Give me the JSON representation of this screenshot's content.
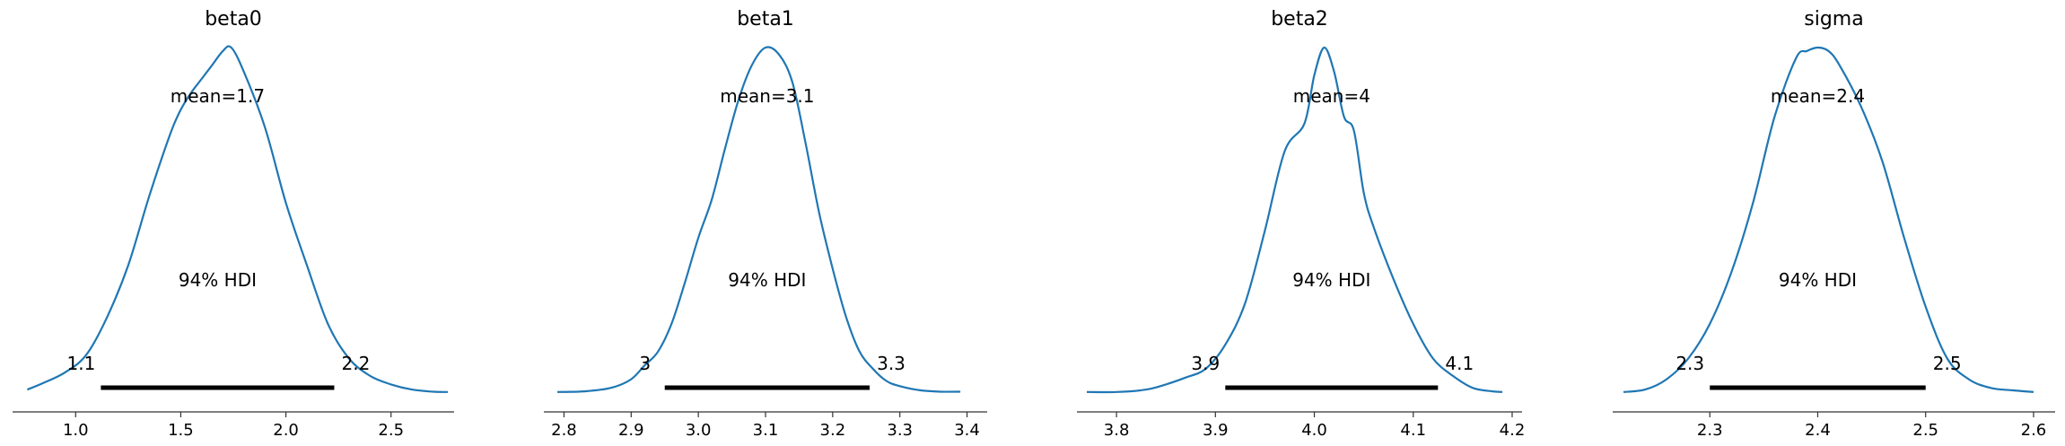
{
  "chart_data": [
    {
      "type": "line",
      "title": "beta0",
      "mean_label": "mean=1.7",
      "hdi_label": "94% HDI",
      "hdi_low_label": "1.1",
      "hdi_high_label": "2.2",
      "hdi": [
        1.12,
        2.23
      ],
      "xlim": [
        0.7,
        2.8
      ],
      "xticks": [
        1.0,
        1.5,
        2.0,
        2.5
      ],
      "xtick_labels": [
        "1.0",
        "1.5",
        "2.0",
        "2.5"
      ],
      "density": {
        "x": [
          0.77,
          0.85,
          0.95,
          1.05,
          1.15,
          1.25,
          1.35,
          1.45,
          1.5,
          1.55,
          1.6,
          1.65,
          1.7,
          1.74,
          1.8,
          1.9,
          2.0,
          2.1,
          2.2,
          2.3,
          2.4,
          2.5,
          2.6,
          2.7,
          2.77
        ],
        "y": [
          0.01,
          0.03,
          0.06,
          0.11,
          0.22,
          0.37,
          0.57,
          0.75,
          0.82,
          0.87,
          0.91,
          0.95,
          0.99,
          1.0,
          0.93,
          0.77,
          0.55,
          0.37,
          0.2,
          0.1,
          0.05,
          0.025,
          0.01,
          0.004,
          0.003
        ]
      }
    },
    {
      "type": "line",
      "title": "beta1",
      "mean_label": "mean=3.1",
      "hdi_label": "94% HDI",
      "hdi_low_label": "3",
      "hdi_high_label": "3.3",
      "hdi": [
        2.95,
        3.255
      ],
      "xlim": [
        2.77,
        3.43
      ],
      "xticks": [
        2.8,
        2.9,
        3.0,
        3.1,
        3.2,
        3.3,
        3.4
      ],
      "xtick_labels": [
        "2.8",
        "2.9",
        "3.0",
        "3.1",
        "3.2",
        "3.3",
        "3.4"
      ],
      "density": {
        "x": [
          2.79,
          2.83,
          2.87,
          2.9,
          2.92,
          2.94,
          2.96,
          2.98,
          3.0,
          3.02,
          3.04,
          3.06,
          3.08,
          3.1,
          3.12,
          3.14,
          3.16,
          3.18,
          3.2,
          3.22,
          3.24,
          3.26,
          3.28,
          3.3,
          3.33,
          3.36,
          3.39
        ],
        "y": [
          0.003,
          0.005,
          0.015,
          0.04,
          0.08,
          0.12,
          0.2,
          0.32,
          0.45,
          0.56,
          0.71,
          0.85,
          0.95,
          1.0,
          0.98,
          0.9,
          0.72,
          0.52,
          0.36,
          0.22,
          0.12,
          0.07,
          0.035,
          0.02,
          0.008,
          0.004,
          0.004
        ]
      }
    },
    {
      "type": "line",
      "title": "beta2",
      "mean_label": "mean=4",
      "hdi_label": "94% HDI",
      "hdi_low_label": "3.9",
      "hdi_high_label": "4.1",
      "hdi": [
        3.91,
        4.125
      ],
      "xlim": [
        3.76,
        4.21
      ],
      "xticks": [
        3.8,
        3.9,
        4.0,
        4.1,
        4.2
      ],
      "xtick_labels": [
        "3.8",
        "3.9",
        "4.0",
        "4.1",
        "4.2"
      ],
      "density": {
        "x": [
          3.77,
          3.8,
          3.83,
          3.85,
          3.87,
          3.89,
          3.91,
          3.93,
          3.95,
          3.97,
          3.99,
          4.0,
          4.01,
          4.02,
          4.03,
          4.04,
          4.05,
          4.06,
          4.08,
          4.1,
          4.12,
          4.14,
          4.16,
          4.18,
          4.19
        ],
        "y": [
          0.003,
          0.003,
          0.01,
          0.025,
          0.045,
          0.07,
          0.14,
          0.26,
          0.47,
          0.7,
          0.78,
          0.92,
          1.0,
          0.93,
          0.8,
          0.76,
          0.58,
          0.48,
          0.33,
          0.2,
          0.1,
          0.05,
          0.015,
          0.005,
          0.003
        ]
      }
    },
    {
      "type": "line",
      "title": "sigma",
      "mean_label": "mean=2.4",
      "hdi_label": "94% HDI",
      "hdi_low_label": "2.3",
      "hdi_high_label": "2.5",
      "hdi": [
        2.3,
        2.5
      ],
      "xlim": [
        2.21,
        2.62
      ],
      "xticks": [
        2.3,
        2.4,
        2.5,
        2.6
      ],
      "xtick_labels": [
        "2.3",
        "2.4",
        "2.5",
        "2.6"
      ],
      "density": {
        "x": [
          2.22,
          2.24,
          2.26,
          2.28,
          2.3,
          2.32,
          2.34,
          2.36,
          2.38,
          2.39,
          2.4,
          2.41,
          2.42,
          2.44,
          2.46,
          2.48,
          2.5,
          2.52,
          2.54,
          2.56,
          2.58,
          2.6
        ],
        "y": [
          0.003,
          0.01,
          0.04,
          0.1,
          0.2,
          0.35,
          0.55,
          0.8,
          0.97,
          0.99,
          1.0,
          0.99,
          0.95,
          0.83,
          0.67,
          0.45,
          0.25,
          0.1,
          0.04,
          0.015,
          0.008,
          0.003
        ]
      }
    }
  ]
}
